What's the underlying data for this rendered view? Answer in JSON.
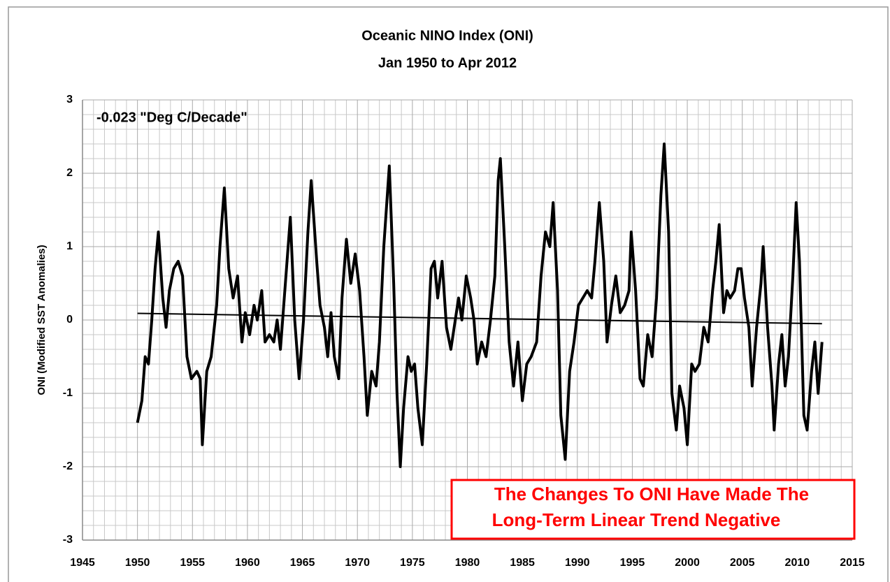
{
  "chart_data": {
    "type": "line",
    "title": "Oceanic NINO Index (ONI)",
    "subtitle": "Jan 1950  to Apr 2012",
    "y_label": "ONI (Modified SST Anomalies)",
    "annotations": [
      "-0.023 \"Deg C/Decade\"",
      "The Changes To ONI Have Made The",
      "Long-Term Linear Trend Negative"
    ],
    "annotation_color": "#ff0000",
    "xlim": [
      1945,
      2015
    ],
    "xticks": [
      1945,
      1950,
      1955,
      1960,
      1965,
      1970,
      1975,
      1980,
      1985,
      1990,
      1995,
      2000,
      2005,
      2010,
      2015
    ],
    "ylim": [
      -3,
      3
    ],
    "yticks": [
      -3,
      -2,
      -1,
      0,
      1,
      2,
      3
    ],
    "grid": true,
    "minor_grid": true,
    "series": [
      {
        "color": "#000000",
        "x": [
          1950.0,
          1950.4,
          1950.7,
          1951.0,
          1951.3,
          1951.6,
          1951.9,
          1952.3,
          1952.6,
          1952.9,
          1953.3,
          1953.7,
          1954.1,
          1954.5,
          1954.9,
          1955.4,
          1955.7,
          1955.9,
          1956.3,
          1956.7,
          1957.2,
          1957.5,
          1957.9,
          1958.3,
          1958.7,
          1959.1,
          1959.5,
          1959.8,
          1960.2,
          1960.6,
          1960.9,
          1961.3,
          1961.6,
          1962.0,
          1962.4,
          1962.7,
          1963.0,
          1963.4,
          1963.9,
          1964.3,
          1964.7,
          1965.1,
          1965.5,
          1965.8,
          1966.3,
          1966.6,
          1967.0,
          1967.3,
          1967.6,
          1967.9,
          1968.3,
          1968.6,
          1969.0,
          1969.4,
          1969.8,
          1970.2,
          1970.6,
          1970.9,
          1971.3,
          1971.7,
          1972.0,
          1972.4,
          1972.9,
          1973.3,
          1973.6,
          1973.9,
          1974.2,
          1974.6,
          1974.9,
          1975.2,
          1975.5,
          1975.9,
          1976.3,
          1976.7,
          1977.0,
          1977.3,
          1977.7,
          1978.1,
          1978.5,
          1978.9,
          1979.2,
          1979.5,
          1979.9,
          1980.3,
          1980.6,
          1980.9,
          1981.3,
          1981.7,
          1982.1,
          1982.5,
          1982.8,
          1983.0,
          1983.4,
          1983.8,
          1984.2,
          1984.6,
          1985.0,
          1985.4,
          1985.8,
          1986.3,
          1986.7,
          1987.1,
          1987.5,
          1987.8,
          1988.2,
          1988.5,
          1988.9,
          1989.3,
          1989.7,
          1990.1,
          1990.5,
          1990.9,
          1991.3,
          1991.6,
          1992.0,
          1992.4,
          1992.7,
          1993.1,
          1993.5,
          1993.9,
          1994.3,
          1994.7,
          1994.9,
          1995.3,
          1995.7,
          1996.0,
          1996.4,
          1996.8,
          1997.2,
          1997.6,
          1997.9,
          1998.3,
          1998.6,
          1999.0,
          1999.3,
          1999.7,
          2000.0,
          2000.4,
          2000.7,
          2001.1,
          2001.5,
          2001.9,
          2002.3,
          2002.6,
          2002.9,
          2003.3,
          2003.6,
          2003.9,
          2004.3,
          2004.6,
          2004.9,
          2005.2,
          2005.6,
          2005.9,
          2006.3,
          2006.7,
          2006.9,
          2007.3,
          2007.7,
          2007.9,
          2008.3,
          2008.6,
          2008.9,
          2009.2,
          2009.6,
          2009.9,
          2010.2,
          2010.6,
          2010.9,
          2011.3,
          2011.6,
          2011.9,
          2012.25
        ],
        "values": [
          -1.4,
          -1.1,
          -0.5,
          -0.6,
          0.0,
          0.7,
          1.2,
          0.3,
          -0.1,
          0.4,
          0.7,
          0.8,
          0.6,
          -0.5,
          -0.8,
          -0.7,
          -0.8,
          -1.7,
          -0.7,
          -0.5,
          0.2,
          1.0,
          1.8,
          0.7,
          0.3,
          0.6,
          -0.3,
          0.1,
          -0.2,
          0.2,
          0.0,
          0.4,
          -0.3,
          -0.2,
          -0.3,
          0.0,
          -0.4,
          0.4,
          1.4,
          0.0,
          -0.8,
          0.0,
          1.2,
          1.9,
          0.8,
          0.2,
          -0.1,
          -0.5,
          0.1,
          -0.5,
          -0.8,
          0.3,
          1.1,
          0.5,
          0.9,
          0.4,
          -0.5,
          -1.3,
          -0.7,
          -0.9,
          -0.3,
          1.0,
          2.1,
          0.5,
          -1.0,
          -2.0,
          -1.2,
          -0.5,
          -0.7,
          -0.6,
          -1.2,
          -1.7,
          -0.6,
          0.7,
          0.8,
          0.3,
          0.8,
          -0.1,
          -0.4,
          0.0,
          0.3,
          0.0,
          0.6,
          0.3,
          0.0,
          -0.6,
          -0.3,
          -0.5,
          0.0,
          0.6,
          1.9,
          2.2,
          1.0,
          -0.3,
          -0.9,
          -0.3,
          -1.1,
          -0.6,
          -0.5,
          -0.3,
          0.6,
          1.2,
          1.0,
          1.6,
          0.4,
          -1.3,
          -1.9,
          -0.7,
          -0.3,
          0.2,
          0.3,
          0.4,
          0.3,
          0.8,
          1.6,
          0.8,
          -0.3,
          0.2,
          0.6,
          0.1,
          0.2,
          0.4,
          1.2,
          0.4,
          -0.8,
          -0.9,
          -0.2,
          -0.5,
          0.3,
          1.7,
          2.4,
          1.2,
          -1.0,
          -1.5,
          -0.9,
          -1.2,
          -1.7,
          -0.6,
          -0.7,
          -0.6,
          -0.1,
          -0.3,
          0.4,
          0.8,
          1.3,
          0.1,
          0.4,
          0.3,
          0.4,
          0.7,
          0.7,
          0.3,
          -0.1,
          -0.9,
          -0.1,
          0.5,
          1.0,
          -0.1,
          -0.9,
          -1.5,
          -0.6,
          -0.2,
          -0.9,
          -0.5,
          0.6,
          1.6,
          0.8,
          -1.3,
          -1.5,
          -0.7,
          -0.3,
          -1.0,
          -0.3
        ]
      },
      {
        "color": "#000000",
        "x": [
          1950.0,
          2012.25
        ],
        "values": [
          0.09,
          -0.05
        ]
      }
    ]
  }
}
